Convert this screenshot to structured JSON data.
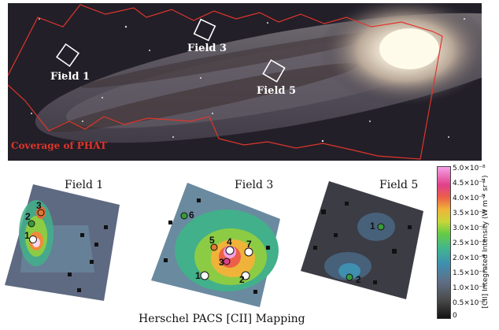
{
  "top": {
    "fields": [
      "Field 1",
      "Field 3",
      "Field 5"
    ],
    "coverage": "Coverage of PHAT"
  },
  "maps": [
    {
      "title": "Field 1",
      "markers": [
        "1",
        "2",
        "3"
      ]
    },
    {
      "title": "Field 3",
      "markers": [
        "1",
        "2",
        "3",
        "4",
        "5",
        "6",
        "7"
      ]
    },
    {
      "title": "Field 5",
      "markers": [
        "1",
        "2"
      ]
    }
  ],
  "colorbar": {
    "ticks": [
      "5.0×10⁻⁸",
      "4.5×10⁻⁸",
      "4.0×10⁻⁸",
      "3.5×10⁻⁸",
      "3.0×10⁻⁸",
      "2.5×10⁻⁸",
      "2.0×10⁻⁸",
      "1.5×10⁻⁸",
      "1.0×10⁻⁸",
      "0.5×10⁻⁸",
      "0"
    ],
    "label": "[CII] Integrated Intensity (W m⁻² sr⁻¹)"
  },
  "footer": "Herschel PACS [CII] Mapping",
  "colors": {
    "coverage": "#e0352b",
    "marker_green": "#3a9a3a"
  }
}
